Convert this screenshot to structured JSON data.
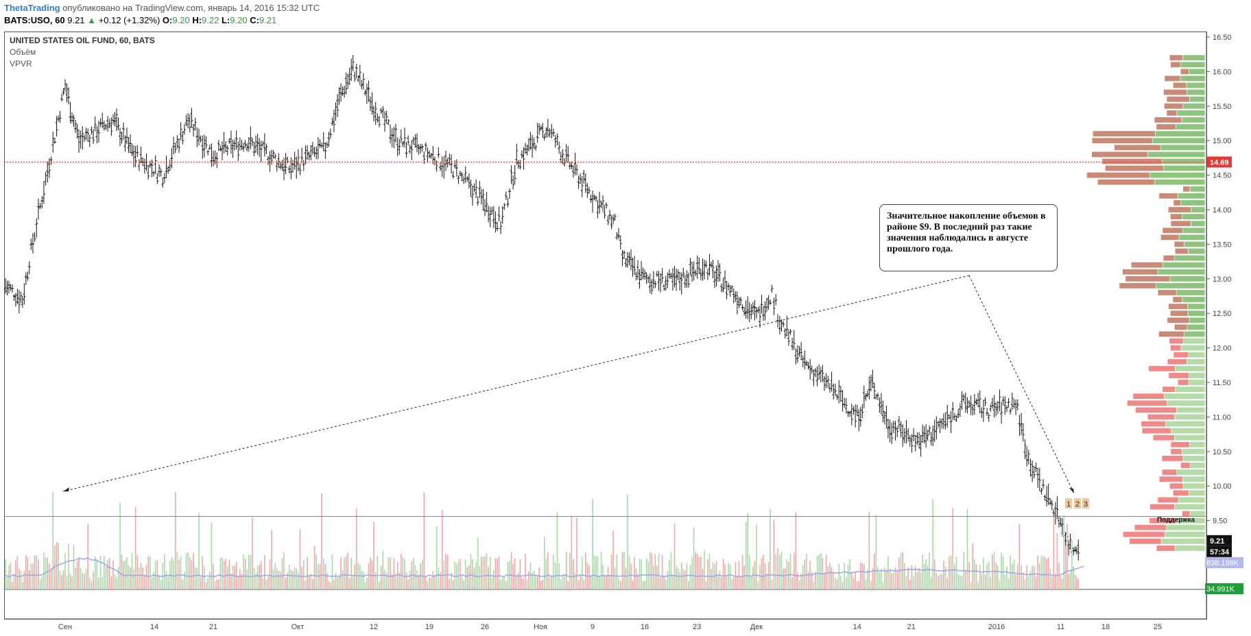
{
  "header": {
    "author": "ThetaTrading",
    "published_text": "опубликовано на TradingView.com, январь 14, 2016 15:32 UTC",
    "symbol": "BATS:USO, 60",
    "last": "9.21",
    "change": "+0.12 (+1.32%)",
    "o_label": "O:",
    "o": "9.20",
    "h_label": "H:",
    "h": "9.22",
    "l_label": "L:",
    "l": "9.20",
    "c_label": "C:",
    "c": "9.21"
  },
  "legend": {
    "title": "UNITED STATES OIL FUND, 60, BATS",
    "volume": "Объём",
    "vpvr": "VPVR"
  },
  "annotation": "Значительное накопление объемов в районе $9. В последний раз такие значения наблюдались в августе прошлого года.",
  "colors": {
    "up_vol": "#a8d8a8",
    "down_vol": "#f2a6a6",
    "ma": "#9aa5e8",
    "vp_up": "#8fc47f",
    "vp_down": "#c98a78",
    "vp_up_light": "#b4dba8",
    "vp_down_light": "#f08a8a",
    "ref_line": "#e53935",
    "badge": "#f2c79a"
  },
  "chart_data": {
    "type": "ohlc",
    "title": "UNITED STATES OIL FUND, 60, BATS",
    "y_ticks": [
      "16.50",
      "16.00",
      "15.50",
      "15.00",
      "14.50",
      "14.00",
      "13.50",
      "13.00",
      "12.50",
      "12.00",
      "11.50",
      "11.00",
      "10.50",
      "10.00",
      "9.50"
    ],
    "x_ticks": [
      "Сен",
      "14",
      "21",
      "Окт",
      "12",
      "19",
      "26",
      "Ноя",
      "9",
      "16",
      "23",
      "Дек",
      "14",
      "21",
      "2016",
      "11",
      "18",
      "25"
    ],
    "ylim": [
      9.0,
      16.6
    ],
    "price_path": [
      {
        "date": "2015-08-25",
        "price": 12.9
      },
      {
        "date": "2015-08-27",
        "price": 12.7
      },
      {
        "date": "2015-08-28",
        "price": 13.4
      },
      {
        "date": "2015-08-31",
        "price": 15.2
      },
      {
        "date": "2015-09-01",
        "price": 15.8
      },
      {
        "date": "2015-09-03",
        "price": 15.0
      },
      {
        "date": "2015-09-08",
        "price": 15.3
      },
      {
        "date": "2015-09-11",
        "price": 14.8
      },
      {
        "date": "2015-09-15",
        "price": 14.5
      },
      {
        "date": "2015-09-18",
        "price": 15.3
      },
      {
        "date": "2015-09-21",
        "price": 14.8
      },
      {
        "date": "2015-09-25",
        "price": 15.0
      },
      {
        "date": "2015-09-30",
        "price": 14.6
      },
      {
        "date": "2015-10-05",
        "price": 14.9
      },
      {
        "date": "2015-10-07",
        "price": 15.6
      },
      {
        "date": "2015-10-09",
        "price": 16.05
      },
      {
        "date": "2015-10-12",
        "price": 15.5
      },
      {
        "date": "2015-10-15",
        "price": 15.0
      },
      {
        "date": "2015-10-19",
        "price": 14.8
      },
      {
        "date": "2015-10-22",
        "price": 14.6
      },
      {
        "date": "2015-10-26",
        "price": 14.1
      },
      {
        "date": "2015-10-28",
        "price": 13.8
      },
      {
        "date": "2015-10-30",
        "price": 14.7
      },
      {
        "date": "2015-11-03",
        "price": 15.2
      },
      {
        "date": "2015-11-05",
        "price": 14.8
      },
      {
        "date": "2015-11-09",
        "price": 14.2
      },
      {
        "date": "2015-11-12",
        "price": 13.8
      },
      {
        "date": "2015-11-13",
        "price": 13.3
      },
      {
        "date": "2015-11-16",
        "price": 13.0
      },
      {
        "date": "2015-11-20",
        "price": 12.95
      },
      {
        "date": "2015-11-24",
        "price": 13.2
      },
      {
        "date": "2015-11-27",
        "price": 12.9
      },
      {
        "date": "2015-12-01",
        "price": 12.45
      },
      {
        "date": "2015-12-03",
        "price": 12.8
      },
      {
        "date": "2015-12-04",
        "price": 12.4
      },
      {
        "date": "2015-12-07",
        "price": 11.8
      },
      {
        "date": "2015-12-10",
        "price": 11.5
      },
      {
        "date": "2015-12-14",
        "price": 11.0
      },
      {
        "date": "2015-12-16",
        "price": 11.5
      },
      {
        "date": "2015-12-18",
        "price": 10.9
      },
      {
        "date": "2015-12-22",
        "price": 10.65
      },
      {
        "date": "2015-12-24",
        "price": 10.8
      },
      {
        "date": "2015-12-28",
        "price": 11.2
      },
      {
        "date": "2015-12-31",
        "price": 11.1
      },
      {
        "date": "2016-01-04",
        "price": 11.2
      },
      {
        "date": "2016-01-06",
        "price": 10.4
      },
      {
        "date": "2016-01-08",
        "price": 10.0
      },
      {
        "date": "2016-01-11",
        "price": 9.5
      },
      {
        "date": "2016-01-12",
        "price": 9.2
      },
      {
        "date": "2016-01-13",
        "price": 9.1
      },
      {
        "date": "2016-01-14",
        "price": 9.21
      }
    ],
    "reference_line": {
      "price": 14.69,
      "label": "14.69",
      "style": "dotted"
    },
    "support_line": {
      "price": 9.56,
      "label": "Поддержка"
    },
    "last_price_label": "9.21",
    "countdown_label": "57:34",
    "volume_labels": [
      "838.198K",
      "34.991K"
    ],
    "markers": [
      "1",
      "2",
      "3"
    ]
  }
}
